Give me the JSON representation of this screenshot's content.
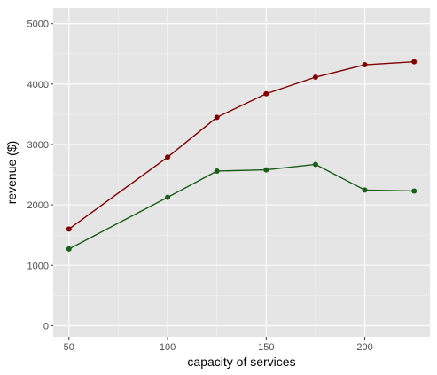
{
  "chart_data": {
    "type": "line",
    "title": "",
    "xlabel": "capacity of services",
    "ylabel": "revenue ($)",
    "x": [
      50,
      100,
      125,
      150,
      175,
      200,
      225
    ],
    "xlim": [
      42,
      233
    ],
    "ylim": [
      -185,
      5260
    ],
    "xticks": [
      50,
      100,
      150,
      200
    ],
    "yticks": [
      0,
      1000,
      2000,
      3000,
      4000,
      5000
    ],
    "grid": true,
    "legend": "none",
    "panel_background": "#e5e5e5",
    "series": [
      {
        "values": [
          1600,
          2790,
          3450,
          3840,
          4115,
          4320,
          4370
        ],
        "color": "#800000"
      },
      {
        "values": [
          1270,
          2125,
          2560,
          2580,
          2670,
          2245,
          2230
        ],
        "color": "#1a5e1a"
      }
    ]
  }
}
